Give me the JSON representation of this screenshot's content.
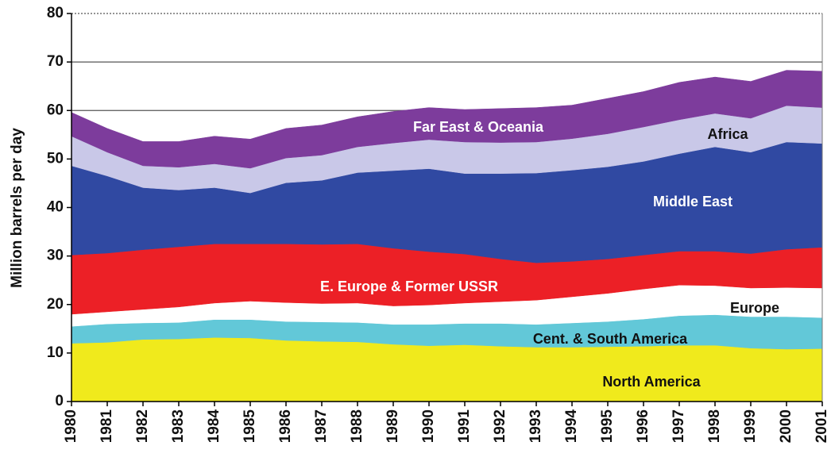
{
  "chart_data": {
    "type": "stacked-area",
    "y_label": "Million barrels per day",
    "categories": [
      "1980",
      "1981",
      "1982",
      "1983",
      "1984",
      "1985",
      "1986",
      "1987",
      "1988",
      "1989",
      "1990",
      "1991",
      "1992",
      "1993",
      "1994",
      "1995",
      "1996",
      "1997",
      "1998",
      "1999",
      "2000",
      "2001"
    ],
    "ylim": [
      0,
      80
    ],
    "yticks": [
      0,
      10,
      20,
      30,
      40,
      50,
      60,
      70,
      80
    ],
    "grid": true,
    "series": [
      {
        "name": "North America",
        "color": "#f0ea1c",
        "values": [
          12,
          12.2,
          12.8,
          12.9,
          13.2,
          13.1,
          12.6,
          12.4,
          12.3,
          11.8,
          11.5,
          11.7,
          11.4,
          11.2,
          11.2,
          11.3,
          11.4,
          11.6,
          11.6,
          11.0,
          10.8,
          10.9
        ]
      },
      {
        "name": "Cent. & South America",
        "color": "#62c8d8",
        "values": [
          3.5,
          3.8,
          3.4,
          3.4,
          3.7,
          3.8,
          3.9,
          4.0,
          4.0,
          4.1,
          4.4,
          4.4,
          4.7,
          4.7,
          5.0,
          5.2,
          5.6,
          6.1,
          6.3,
          6.5,
          6.7,
          6.4
        ]
      },
      {
        "name": "Europe",
        "color": "#ffffff",
        "values": [
          2.5,
          2.5,
          2.8,
          3.2,
          3.4,
          3.8,
          3.9,
          3.8,
          4.0,
          3.8,
          4.0,
          4.2,
          4.5,
          5.0,
          5.4,
          5.8,
          6.2,
          6.3,
          6.0,
          5.9,
          6.0,
          6.1
        ]
      },
      {
        "name": "E. Europe & Former USSR",
        "color": "#ec2026",
        "values": [
          12.2,
          12.1,
          12.3,
          12.4,
          12.2,
          11.8,
          12.1,
          12.2,
          12.2,
          11.9,
          11.0,
          10.1,
          8.8,
          7.7,
          7.3,
          7.1,
          7.0,
          7.0,
          7.1,
          7.1,
          7.9,
          8.4
        ]
      },
      {
        "name": "Middle East",
        "color": "#3049a2",
        "values": [
          18.4,
          15.9,
          12.8,
          11.7,
          11.6,
          10.5,
          12.6,
          13.2,
          14.7,
          16.0,
          17.1,
          16.6,
          17.6,
          18.5,
          18.8,
          19.0,
          19.3,
          20.1,
          21.5,
          20.9,
          22.1,
          21.4
        ]
      },
      {
        "name": "Africa",
        "color": "#c9c8e8",
        "values": [
          6.1,
          4.9,
          4.5,
          4.7,
          4.9,
          5.1,
          5.1,
          5.2,
          5.3,
          5.7,
          6.0,
          6.5,
          6.4,
          6.4,
          6.5,
          6.8,
          7.1,
          7.0,
          6.9,
          7.0,
          7.5,
          7.4
        ]
      },
      {
        "name": "Far East & Oceania",
        "color": "#7d3c9c",
        "values": [
          4.9,
          4.9,
          5.0,
          5.3,
          5.7,
          6.0,
          6.1,
          6.2,
          6.2,
          6.5,
          6.6,
          6.7,
          7.0,
          7.1,
          6.9,
          7.3,
          7.3,
          7.7,
          7.5,
          7.6,
          7.3,
          7.5
        ]
      }
    ]
  }
}
